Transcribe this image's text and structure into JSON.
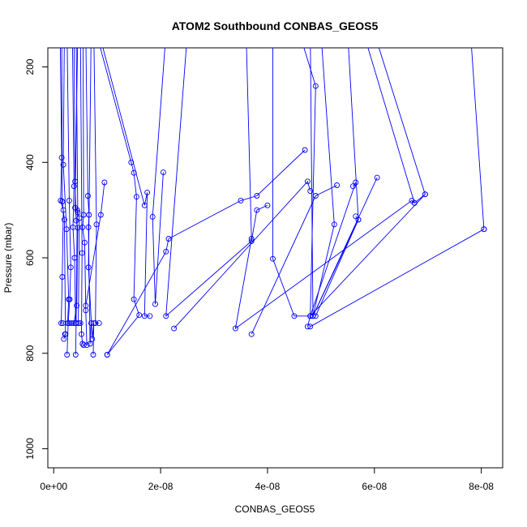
{
  "chart_data": {
    "type": "scatter",
    "title": "ATOM2 Southbound CONBAS_GEOS5",
    "xlabel": "CONBAS_GEOS5",
    "ylabel": "Pressure (mbar)",
    "xlim": [
      -1.1e-09,
      8.4e-08
    ],
    "ylim": [
      1040,
      160
    ],
    "y_reversed": true,
    "grid": false,
    "legend": "none",
    "x_ticks": [
      {
        "value": 0,
        "label": "0e+00"
      },
      {
        "value": 2e-08,
        "label": "2e-08"
      },
      {
        "value": 4e-08,
        "label": "4e-08"
      },
      {
        "value": 6e-08,
        "label": "6e-08"
      },
      {
        "value": 8e-08,
        "label": "8e-08"
      }
    ],
    "y_ticks": [
      {
        "value": 200,
        "label": "200"
      },
      {
        "value": 400,
        "label": "400"
      },
      {
        "value": 600,
        "label": "600"
      },
      {
        "value": 800,
        "label": "800"
      },
      {
        "value": 1000,
        "label": "1000"
      }
    ],
    "series_color": "#0000ff",
    "series": [
      {
        "points": [
          [
            1.2e-09,
            130
          ],
          [
            1.5e-09,
            390
          ],
          [
            1.3e-09,
            480
          ],
          [
            1.8e-09,
            500
          ],
          [
            1.6e-09,
            640
          ],
          [
            1.4e-09,
            737
          ],
          [
            1.7e-09,
            737
          ]
        ]
      },
      {
        "points": [
          [
            1.5e-09,
            130
          ],
          [
            1.6e-09,
            482
          ],
          [
            2e-09,
            520
          ],
          [
            2.2e-09,
            760
          ],
          [
            1.9e-09,
            770
          ],
          [
            2.1e-09,
            760
          ]
        ]
      },
      {
        "points": [
          [
            2e-09,
            130
          ],
          [
            1.8e-09,
            405
          ],
          [
            2.4e-09,
            540
          ],
          [
            2.8e-09,
            687
          ],
          [
            2.6e-09,
            737
          ],
          [
            3e-09,
            737
          ]
        ]
      },
      {
        "points": [
          [
            2.5e-09,
            130
          ],
          [
            2.9e-09,
            480
          ],
          [
            3.2e-09,
            620
          ],
          [
            3e-09,
            687
          ],
          [
            2.7e-09,
            737
          ],
          [
            2.5e-09,
            803
          ]
        ]
      },
      {
        "points": [
          [
            3.5e-09,
            130
          ],
          [
            3.8e-09,
            450
          ],
          [
            3.6e-09,
            536
          ],
          [
            3.9e-09,
            600
          ],
          [
            4.1e-09,
            737
          ],
          [
            3.4e-09,
            737
          ]
        ]
      },
      {
        "points": [
          [
            3.8e-09,
            130
          ],
          [
            4e-09,
            440
          ],
          [
            4.2e-09,
            522
          ],
          [
            4.5e-09,
            537
          ],
          [
            4.3e-09,
            700
          ],
          [
            3.8e-09,
            737
          ]
        ]
      },
      {
        "points": [
          [
            4.2e-09,
            130
          ],
          [
            4.5e-09,
            505
          ],
          [
            4.8e-09,
            517
          ],
          [
            4.6e-09,
            737
          ],
          [
            5e-09,
            737
          ]
        ]
      },
      {
        "points": [
          [
            4.5e-09,
            130
          ],
          [
            4e-09,
            495
          ],
          [
            4.4e-09,
            500
          ],
          [
            4.2e-09,
            737
          ],
          [
            4.1e-09,
            803
          ]
        ]
      },
      {
        "points": [
          [
            5e-09,
            130
          ],
          [
            5.3e-09,
            590
          ],
          [
            5.2e-09,
            760
          ],
          [
            5.4e-09,
            780
          ],
          [
            5.6e-09,
            783
          ]
        ]
      },
      {
        "points": [
          [
            5.5e-09,
            130
          ],
          [
            5.6e-09,
            510
          ],
          [
            5.4e-09,
            536
          ],
          [
            5.8e-09,
            568
          ],
          [
            6e-09,
            710
          ],
          [
            6.2e-09,
            783
          ]
        ]
      },
      {
        "points": [
          [
            6e-09,
            130
          ],
          [
            6.4e-09,
            470
          ],
          [
            6.6e-09,
            510
          ],
          [
            6.5e-09,
            536
          ],
          [
            6.8e-09,
            780
          ],
          [
            7e-09,
            737
          ]
        ]
      },
      {
        "points": [
          [
            7e-09,
            130
          ],
          [
            6.5e-09,
            620
          ],
          [
            7.2e-09,
            770
          ],
          [
            7.5e-09,
            737
          ],
          [
            7.4e-09,
            803
          ]
        ]
      },
      {
        "points": [
          [
            7.5e-09,
            130
          ],
          [
            8e-09,
            530
          ],
          [
            7.8e-09,
            737
          ],
          [
            8.5e-09,
            737
          ]
        ]
      },
      {
        "points": [
          [
            9.5e-09,
            442
          ],
          [
            8.8e-09,
            510
          ],
          [
            6e-09,
            700
          ]
        ]
      },
      {
        "points": [
          [
            8e-09,
            130
          ],
          [
            1.45e-08,
            400
          ],
          [
            1.5e-08,
            422
          ],
          [
            1.55e-08,
            472
          ],
          [
            1.5e-08,
            687
          ],
          [
            1.6e-08,
            720
          ],
          [
            1e-08,
            803
          ]
        ]
      },
      {
        "points": [
          [
            8.5e-09,
            130
          ],
          [
            1.7e-08,
            490
          ],
          [
            1.75e-08,
            463
          ],
          [
            1.7e-08,
            722
          ],
          [
            1.8e-08,
            722
          ]
        ]
      },
      {
        "points": [
          [
            1e-08,
            803
          ],
          [
            2.1e-08,
            587
          ],
          [
            2.15e-08,
            560
          ],
          [
            3.5e-08,
            480
          ],
          [
            3.8e-08,
            470
          ],
          [
            4.7e-08,
            374
          ]
        ]
      },
      {
        "points": [
          [
            2.1e-08,
            130
          ],
          [
            1.85e-08,
            514
          ],
          [
            1.9e-08,
            697
          ],
          [
            2.05e-08,
            421
          ]
        ]
      },
      {
        "points": [
          [
            2.5e-08,
            130
          ],
          [
            2.1e-08,
            722
          ],
          [
            3.7e-08,
            565
          ],
          [
            3.8e-08,
            500
          ],
          [
            4e-08,
            490
          ]
        ]
      },
      {
        "points": [
          [
            2.25e-08,
            748
          ],
          [
            4.75e-08,
            440
          ],
          [
            4.8e-08,
            460
          ]
        ]
      },
      {
        "points": [
          [
            3.6e-08,
            130
          ],
          [
            3.7e-08,
            560
          ],
          [
            3.4e-08,
            748
          ],
          [
            6.7e-08,
            480
          ],
          [
            6.75e-08,
            485
          ]
        ]
      },
      {
        "points": [
          [
            3.7e-08,
            760
          ],
          [
            4.9e-08,
            470
          ],
          [
            5.3e-08,
            448
          ]
        ]
      },
      {
        "points": [
          [
            4.1e-08,
            130
          ],
          [
            4.1e-08,
            602
          ],
          [
            4.5e-08,
            722
          ],
          [
            4.8e-08,
            722
          ],
          [
            4.75e-08,
            744
          ]
        ]
      },
      {
        "points": [
          [
            4.6e-08,
            130
          ],
          [
            4.9e-08,
            240
          ],
          [
            4.8e-08,
            722
          ],
          [
            5.65e-08,
            442
          ],
          [
            5.6e-08,
            450
          ]
        ]
      },
      {
        "points": [
          [
            4.8e-08,
            744
          ],
          [
            8.05e-08,
            540
          ]
        ]
      },
      {
        "points": [
          [
            4.8e-08,
            130
          ],
          [
            4.85e-08,
            722
          ],
          [
            6.05e-08,
            432
          ]
        ]
      },
      {
        "points": [
          [
            5e-08,
            130
          ],
          [
            5.25e-08,
            530
          ],
          [
            4.85e-08,
            722
          ],
          [
            5.7e-08,
            520
          ],
          [
            5.65e-08,
            513
          ]
        ]
      },
      {
        "points": [
          [
            5.5e-08,
            130
          ],
          [
            5.7e-08,
            520
          ],
          [
            4.9e-08,
            722
          ]
        ]
      },
      {
        "points": [
          [
            5.8e-08,
            130
          ],
          [
            6.75e-08,
            485
          ],
          [
            6.95e-08,
            467
          ]
        ]
      },
      {
        "points": [
          [
            6e-08,
            130
          ],
          [
            6.95e-08,
            467
          ],
          [
            4.8e-08,
            722
          ]
        ]
      },
      {
        "points": [
          [
            7.8e-08,
            130
          ],
          [
            8.05e-08,
            540
          ]
        ]
      }
    ]
  }
}
